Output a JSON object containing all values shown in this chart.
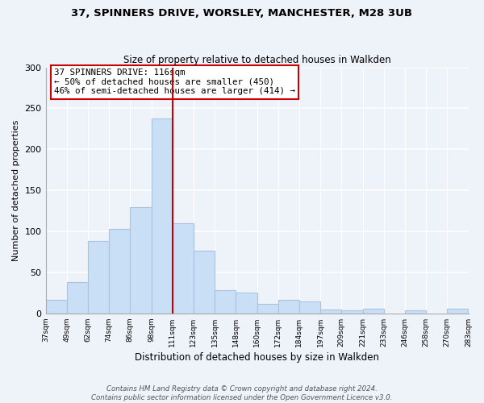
{
  "title1": "37, SPINNERS DRIVE, WORSLEY, MANCHESTER, M28 3UB",
  "title2": "Size of property relative to detached houses in Walkden",
  "xlabel": "Distribution of detached houses by size in Walkden",
  "ylabel": "Number of detached properties",
  "bar_labels": [
    "37sqm",
    "49sqm",
    "62sqm",
    "74sqm",
    "86sqm",
    "98sqm",
    "111sqm",
    "123sqm",
    "135sqm",
    "148sqm",
    "160sqm",
    "172sqm",
    "184sqm",
    "197sqm",
    "209sqm",
    "221sqm",
    "233sqm",
    "246sqm",
    "258sqm",
    "270sqm",
    "283sqm"
  ],
  "bar_values": [
    17,
    38,
    88,
    103,
    130,
    238,
    110,
    76,
    28,
    25,
    12,
    17,
    15,
    5,
    4,
    6,
    0,
    4,
    0,
    6
  ],
  "bar_color": "#c9dff5",
  "bar_edge_color": "#aac4e0",
  "vline_color": "#cc0000",
  "annotation_line1": "37 SPINNERS DRIVE: 116sqm",
  "annotation_line2": "← 50% of detached houses are smaller (450)",
  "annotation_line3": "46% of semi-detached houses are larger (414) →",
  "annotation_box_color": "#ffffff",
  "annotation_box_edge": "#cc0000",
  "ylim": [
    0,
    300
  ],
  "yticks": [
    0,
    50,
    100,
    150,
    200,
    250,
    300
  ],
  "footer": "Contains HM Land Registry data © Crown copyright and database right 2024.\nContains public sector information licensed under the Open Government Licence v3.0.",
  "bg_color": "#eef2f9",
  "grid_color": "#ffffff",
  "spine_color": "#aaaaaa"
}
